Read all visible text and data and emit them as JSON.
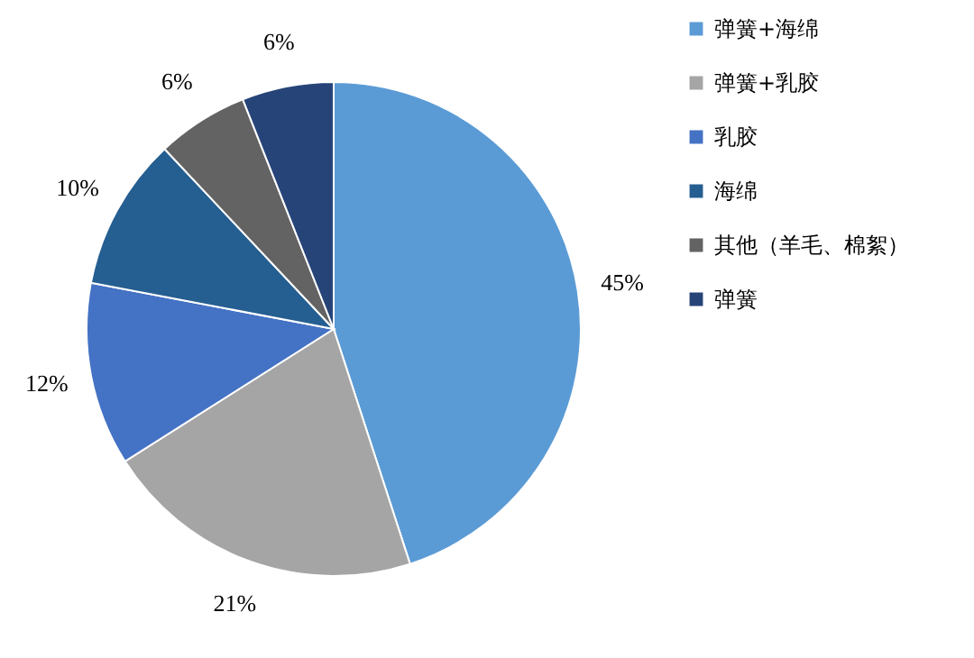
{
  "chart_data": {
    "type": "pie",
    "categories": [
      "弹簧+海绵",
      "弹簧+乳胶",
      "乳胶",
      "海绵",
      "其他（羊毛、棉絮）",
      "弹簧"
    ],
    "values": [
      45,
      21,
      12,
      10,
      6,
      6
    ],
    "value_labels": [
      "45%",
      "21%",
      "12%",
      "10%",
      "6%",
      "6%"
    ],
    "colors": [
      "#5b9bd5",
      "#a5a5a5",
      "#4472c4",
      "#255e91",
      "#636363",
      "#264478"
    ],
    "legend": "right"
  }
}
